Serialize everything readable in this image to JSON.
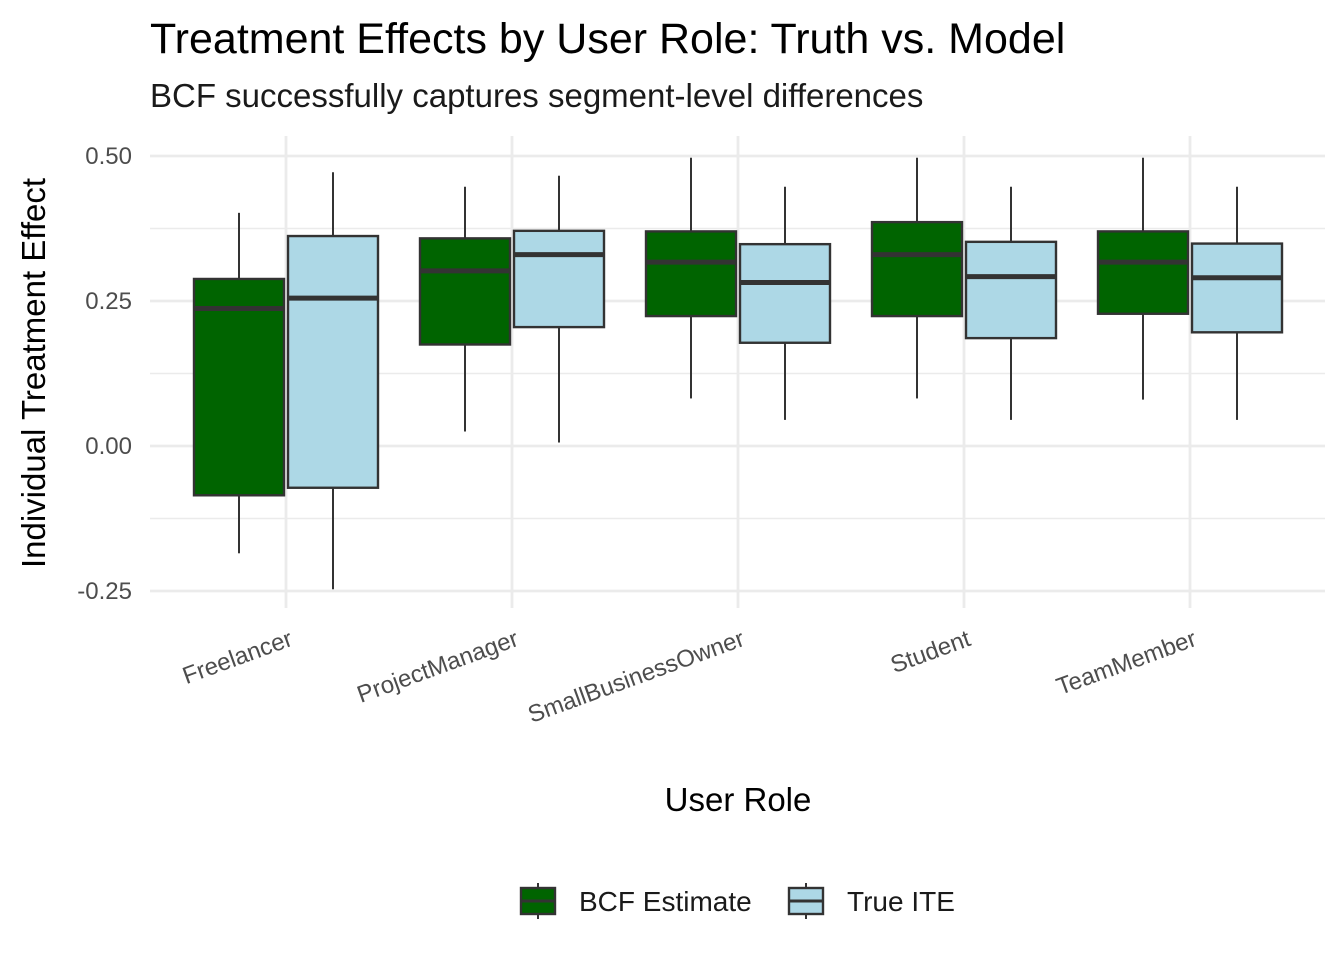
{
  "chart_data": {
    "type": "box",
    "title": "Treatment Effects by User Role: Truth vs. Model",
    "subtitle": "BCF successfully captures segment-level differences",
    "xlabel": "User Role",
    "ylabel": "Individual Treatment Effect",
    "ylim": [
      -0.27,
      0.53
    ],
    "yticks": [
      -0.25,
      0.0,
      0.25,
      0.5
    ],
    "ytick_labels": [
      "-0.25",
      "0.00",
      "0.25",
      "0.50"
    ],
    "grid": true,
    "legend_position": "bottom",
    "categories": [
      "Freelancer",
      "ProjectManager",
      "SmallBusinessOwner",
      "Student",
      "TeamMember"
    ],
    "series": [
      {
        "name": "BCF Estimate",
        "color": "#006400",
        "boxes": [
          {
            "min": -0.185,
            "q1": -0.085,
            "median": 0.237,
            "q3": 0.288,
            "max": 0.402
          },
          {
            "min": 0.025,
            "q1": 0.175,
            "median": 0.302,
            "q3": 0.358,
            "max": 0.447
          },
          {
            "min": 0.082,
            "q1": 0.224,
            "median": 0.317,
            "q3": 0.37,
            "max": 0.497
          },
          {
            "min": 0.082,
            "q1": 0.224,
            "median": 0.33,
            "q3": 0.386,
            "max": 0.497
          },
          {
            "min": 0.08,
            "q1": 0.228,
            "median": 0.317,
            "q3": 0.37,
            "max": 0.497
          }
        ]
      },
      {
        "name": "True ITE",
        "color": "#add8e6",
        "boxes": [
          {
            "min": -0.247,
            "q1": -0.072,
            "median": 0.255,
            "q3": 0.362,
            "max": 0.472
          },
          {
            "min": 0.006,
            "q1": 0.205,
            "median": 0.33,
            "q3": 0.371,
            "max": 0.466
          },
          {
            "min": 0.045,
            "q1": 0.178,
            "median": 0.282,
            "q3": 0.348,
            "max": 0.447
          },
          {
            "min": 0.045,
            "q1": 0.186,
            "median": 0.292,
            "q3": 0.352,
            "max": 0.447
          },
          {
            "min": 0.045,
            "q1": 0.196,
            "median": 0.29,
            "q3": 0.349,
            "max": 0.447
          }
        ]
      }
    ]
  }
}
